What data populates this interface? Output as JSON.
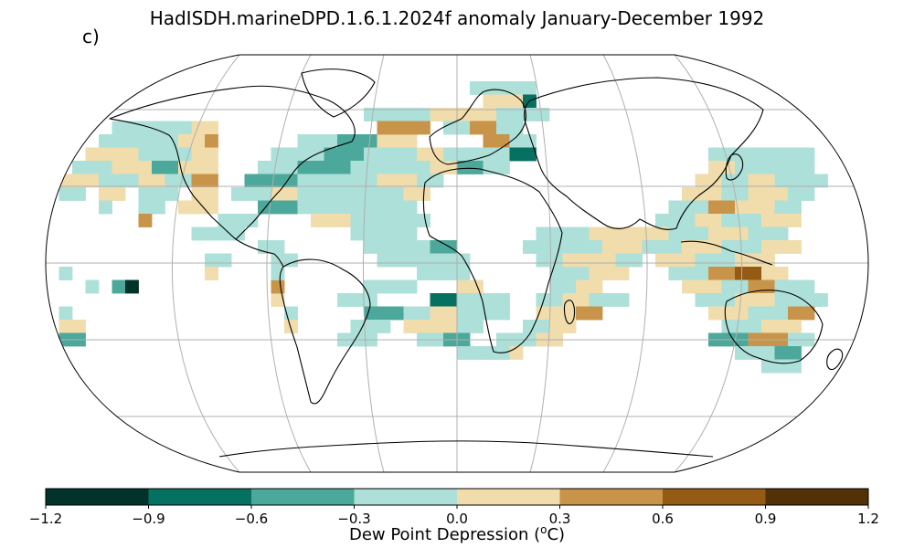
{
  "title": "HadISDH.marineDPD.1.6.1.2024f anomaly January-December 1992",
  "panel_label": "c)",
  "colorbar": {
    "label_prefix": "Dew Point Depression (",
    "label_sup": "o",
    "label_suffix": "C)",
    "ticks": [
      "−1.2",
      "−0.9",
      "−0.6",
      "−0.3",
      "0.0",
      "0.3",
      "0.6",
      "0.9",
      "1.2"
    ],
    "bins": [
      {
        "from": -1.2,
        "to": -0.9,
        "color": "#01332b"
      },
      {
        "from": -0.9,
        "to": -0.6,
        "color": "#067061"
      },
      {
        "from": -0.6,
        "to": -0.3,
        "color": "#4ca89b"
      },
      {
        "from": -0.3,
        "to": 0.0,
        "color": "#ace0d8"
      },
      {
        "from": 0.0,
        "to": 0.3,
        "color": "#f1dcab"
      },
      {
        "from": 0.3,
        "to": 0.6,
        "color": "#c8944a"
      },
      {
        "from": 0.6,
        "to": 0.9,
        "color": "#955a14"
      },
      {
        "from": 0.9,
        "to": 1.2,
        "color": "#523106"
      }
    ]
  },
  "map": {
    "projection": "Robinson",
    "graticule": "30-degree grid",
    "land_color": "#ffffff",
    "coastline_color": "#000000"
  }
}
